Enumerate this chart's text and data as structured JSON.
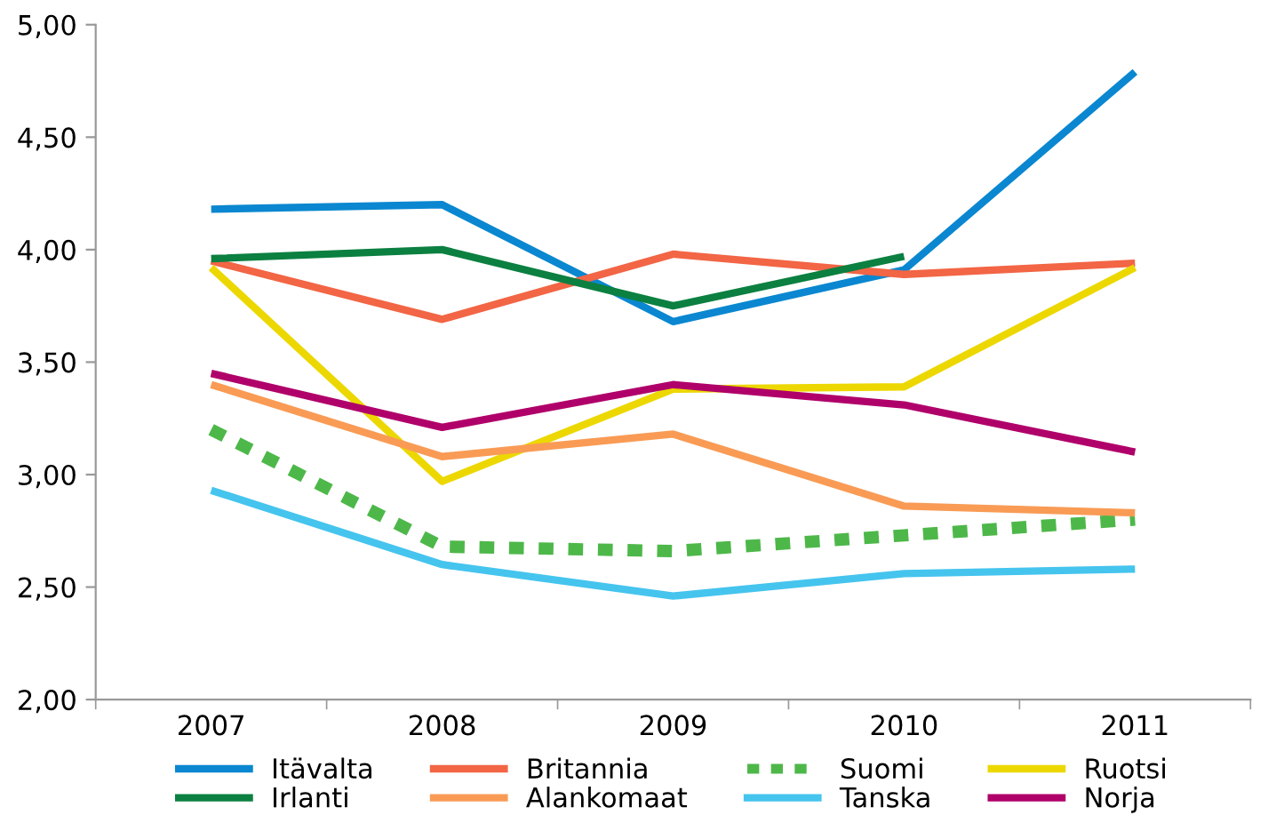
{
  "chart_data": {
    "type": "line",
    "categories": [
      "2007",
      "2008",
      "2009",
      "2010",
      "2011"
    ],
    "ylim": [
      2,
      5
    ],
    "yticks": [
      {
        "value": 2,
        "label": "2,00"
      },
      {
        "value": 2.5,
        "label": "2,50"
      },
      {
        "value": 3,
        "label": "3,00"
      },
      {
        "value": 3.5,
        "label": "3,50"
      },
      {
        "value": 4,
        "label": "4,00"
      },
      {
        "value": 4.5,
        "label": "4,50"
      },
      {
        "value": 5,
        "label": "5,00"
      }
    ],
    "grid": false,
    "legend": "bottom",
    "marker": "none",
    "line_style": "solid",
    "series": [
      {
        "name": "Itävalta",
        "color": "#0a87d0",
        "values": [
          4.18,
          4.2,
          3.68,
          3.91,
          4.79
        ]
      },
      {
        "name": "Britannia",
        "color": "#f26545",
        "values": [
          3.95,
          3.69,
          3.98,
          3.89,
          3.94
        ]
      },
      {
        "name": "Suomi",
        "color": "#4db849",
        "line_style": "dashed",
        "values": [
          3.2,
          2.68,
          2.66,
          2.73,
          2.8
        ]
      },
      {
        "name": "Ruotsi",
        "color": "#ecd800",
        "values": [
          3.92,
          2.97,
          3.38,
          3.39,
          3.92
        ]
      },
      {
        "name": "Irlanti",
        "color": "#0b8040",
        "values": [
          3.96,
          4.0,
          3.75,
          3.97,
          null
        ]
      },
      {
        "name": "Alankomaat",
        "color": "#f99b55",
        "values": [
          3.4,
          3.08,
          3.18,
          2.86,
          2.83
        ]
      },
      {
        "name": "Tanska",
        "color": "#45c4ee",
        "values": [
          2.93,
          2.6,
          2.46,
          2.56,
          2.58
        ]
      },
      {
        "name": "Norja",
        "color": "#b0006a",
        "values": [
          3.45,
          3.21,
          3.4,
          3.31,
          3.1
        ]
      }
    ]
  }
}
